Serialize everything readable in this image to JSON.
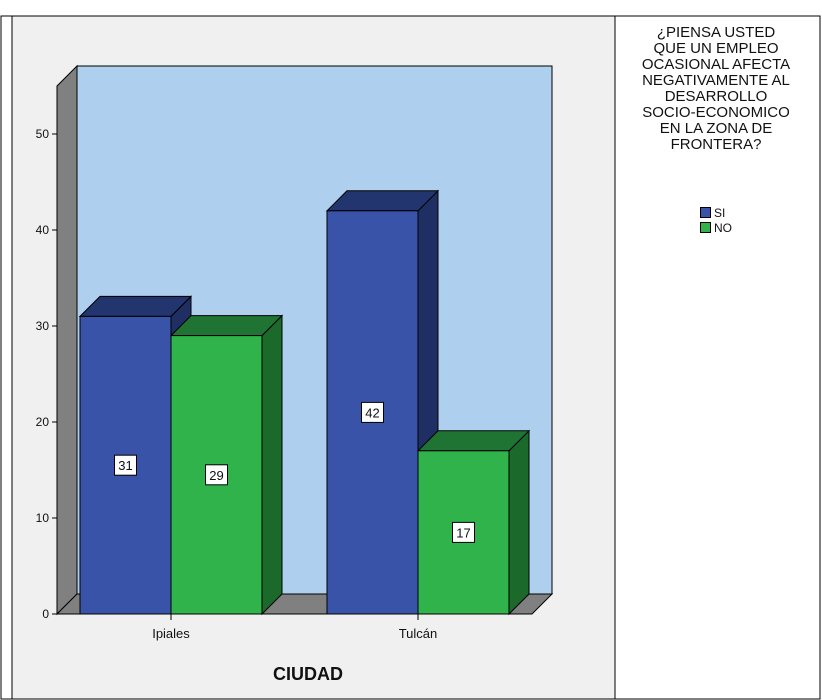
{
  "chart_data": {
    "type": "bar",
    "xlabel": "CIUDAD",
    "ylabel": "",
    "categories": [
      "Ipiales",
      "Tulcán"
    ],
    "ylim": [
      0,
      50
    ],
    "yticks": [
      0,
      10,
      20,
      30,
      40,
      50
    ],
    "series": [
      {
        "name": "SI",
        "values": [
          31,
          42
        ],
        "color": "#3953a8",
        "top_color": "#22356f",
        "side_color": "#1f2f63"
      },
      {
        "name": "NO",
        "values": [
          29,
          17
        ],
        "color": "#2fb34a",
        "top_color": "#207433",
        "side_color": "#1b6a2c"
      }
    ],
    "legend": {
      "title": "¿PIENSA USTED QUE UN EMPLEO OCASIONAL AFECTA NEGATIVAMENTE AL DESARROLLO SOCIO-ECONOMICO EN LA ZONA DE FRONTERA?",
      "title_lines": [
        "¿PIENSA USTED",
        "QUE UN EMPLEO",
        "OCASIONAL AFECTA",
        "NEGATIVAMENTE AL",
        "DESARROLLO",
        "SOCIO-ECONOMICO",
        "EN LA ZONA DE",
        "FRONTERA?"
      ],
      "position": "right"
    },
    "data_labels": true,
    "grid": false,
    "three_d": true
  },
  "colors": {
    "plot_background": "#aecfed",
    "panel_background": "#f0f0f0",
    "floor_wall": "#808080"
  }
}
